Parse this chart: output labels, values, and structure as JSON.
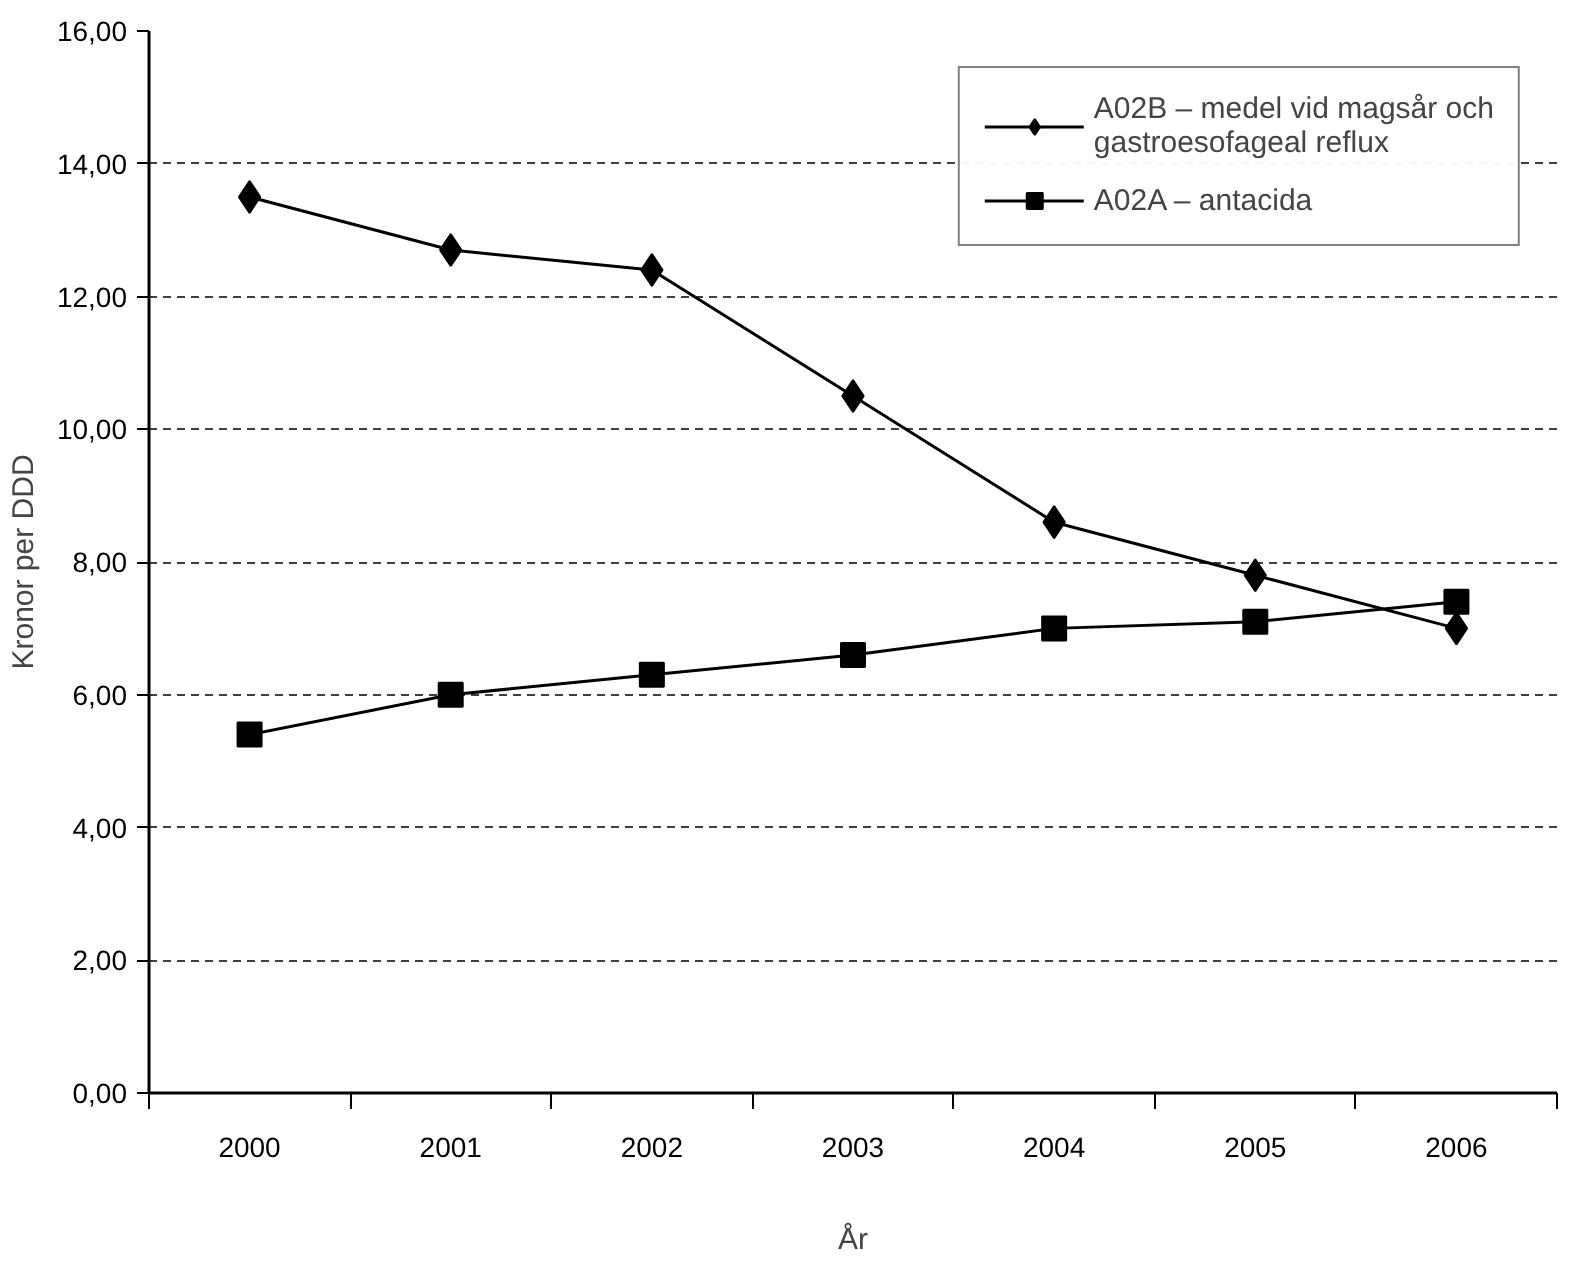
{
  "chart_data": {
    "type": "line",
    "xlabel": "År",
    "ylabel": "Kronor per DDD",
    "categories": [
      "2000",
      "2001",
      "2002",
      "2003",
      "2004",
      "2005",
      "2006"
    ],
    "series": [
      {
        "name": "A02B – medel vid magsår och gastroesofageal reflux",
        "color": "#000000",
        "marker": "diamond",
        "values": [
          13.5,
          12.7,
          12.4,
          10.5,
          8.6,
          7.8,
          7.0
        ]
      },
      {
        "name": "A02A – antacida",
        "color": "#000000",
        "marker": "square",
        "values": [
          5.4,
          6.0,
          6.3,
          6.6,
          7.0,
          7.1,
          7.4
        ]
      }
    ],
    "ylim": [
      0,
      16
    ],
    "yticks": [
      {
        "value": 0,
        "label": "0,00"
      },
      {
        "value": 2,
        "label": "2,00"
      },
      {
        "value": 4,
        "label": "4,00"
      },
      {
        "value": 6,
        "label": "6,00"
      },
      {
        "value": 8,
        "label": "8,00"
      },
      {
        "value": 10,
        "label": "10,00"
      },
      {
        "value": 12,
        "label": "12,00"
      },
      {
        "value": 14,
        "label": "14,00"
      },
      {
        "value": 16,
        "label": "16,00"
      }
    ],
    "grid": "y",
    "legend": "top right",
    "line_style": "solid"
  }
}
